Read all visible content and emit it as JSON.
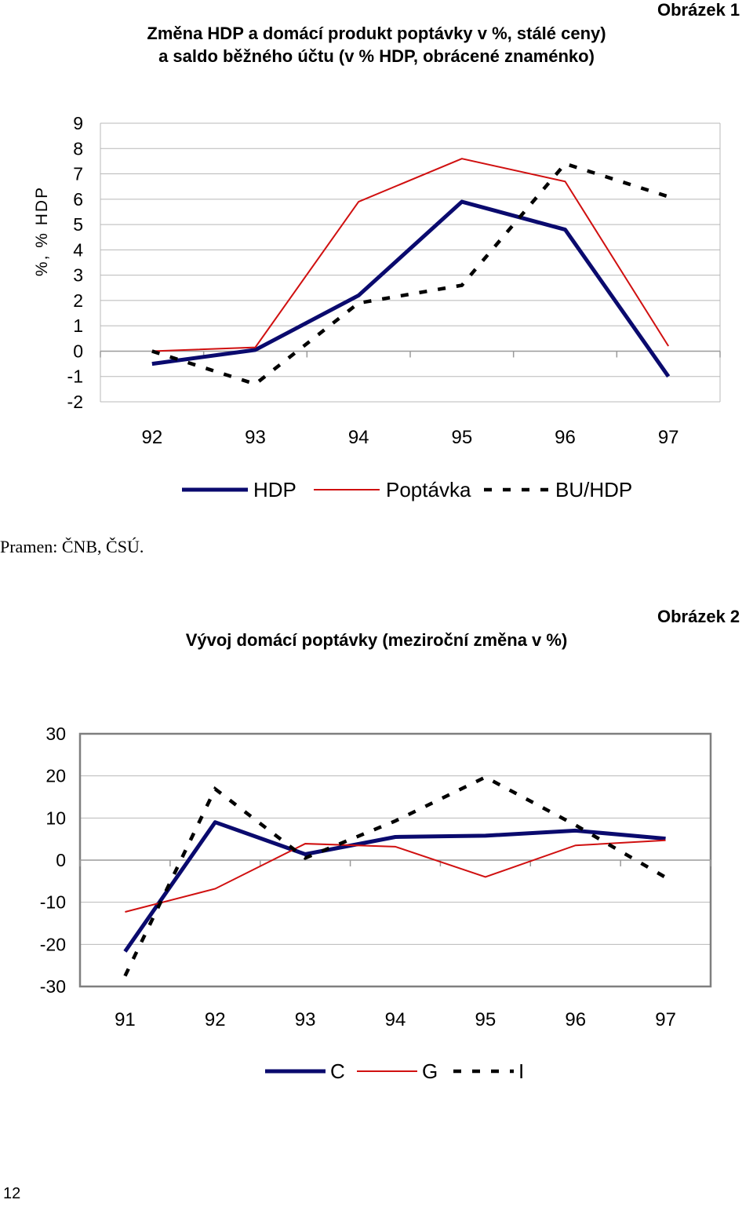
{
  "figure1": {
    "label": "Obrázek 1",
    "title_line1": "Změna HDP a domácí produkt poptávky v %, stálé ceny)",
    "title_line2": "a saldo běžného účtu (v % HDP, obrácené znaménko)",
    "chart_data": {
      "type": "line",
      "title": "Změna HDP a domácí produkt poptávky v %, stálé ceny) a saldo běžného účtu (v % HDP, obrácené znaménko)",
      "xlabel": "",
      "ylabel": "%, % HDP",
      "categories": [
        "92",
        "93",
        "94",
        "95",
        "96",
        "97"
      ],
      "ylim": [
        -2,
        9
      ],
      "yticks": [
        9,
        8,
        7,
        6,
        5,
        4,
        3,
        2,
        1,
        0,
        -1,
        -2
      ],
      "grid": true,
      "legend_position": "bottom",
      "series": [
        {
          "name": "HDP",
          "values": [
            -0.5,
            0.05,
            2.2,
            5.9,
            4.8,
            -1.0
          ],
          "color": "#0a0a6e",
          "style": "thick"
        },
        {
          "name": "Poptávka",
          "values": [
            0.0,
            0.15,
            5.9,
            7.6,
            6.7,
            0.2
          ],
          "color": "#d01010",
          "style": "thin"
        },
        {
          "name": "BU/HDP",
          "values": [
            0.0,
            -1.3,
            1.9,
            2.6,
            7.4,
            6.1
          ],
          "color": "#000000",
          "style": "dashed"
        }
      ]
    }
  },
  "source": "Pramen: ČNB, ČSÚ.",
  "figure2": {
    "label": "Obrázek 2",
    "title": "Vývoj domácí poptávky (meziroční změna v %)",
    "chart_data": {
      "type": "line",
      "title": "Vývoj domácí poptávky (meziroční změna v %)",
      "xlabel": "",
      "ylabel": "",
      "categories": [
        "91",
        "92",
        "93",
        "94",
        "95",
        "96",
        "97"
      ],
      "ylim": [
        -30,
        30
      ],
      "yticks": [
        30,
        20,
        10,
        0,
        -10,
        -20,
        -30
      ],
      "grid": true,
      "legend_position": "bottom",
      "series": [
        {
          "name": "C",
          "values": [
            -21.7,
            9.0,
            1.4,
            5.5,
            5.8,
            7.0,
            5.1
          ],
          "color": "#0a0a6e",
          "style": "thick"
        },
        {
          "name": "G",
          "values": [
            -12.3,
            -6.8,
            3.9,
            3.2,
            -4.0,
            3.5,
            4.7
          ],
          "color": "#d01010",
          "style": "thin"
        },
        {
          "name": "I",
          "values": [
            -27.5,
            16.9,
            0.5,
            9.3,
            19.7,
            8.3,
            -4.1
          ],
          "color": "#000000",
          "style": "dashed"
        }
      ]
    }
  },
  "page_number": "12"
}
